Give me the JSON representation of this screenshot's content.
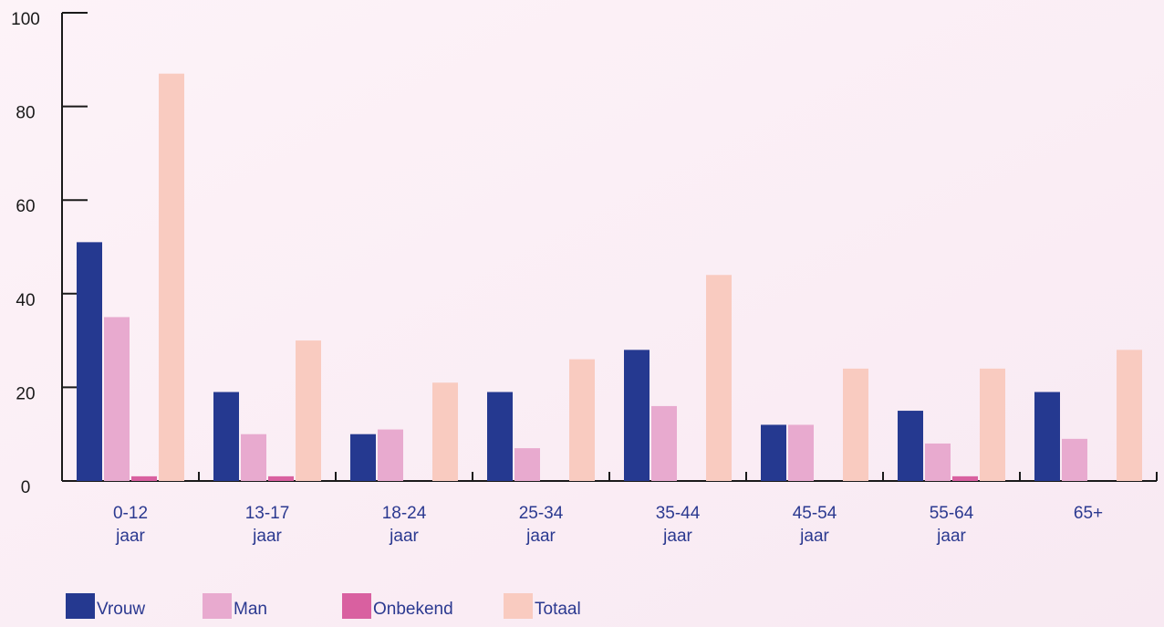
{
  "chart_data": {
    "type": "bar",
    "categories": [
      "0-12 jaar",
      "13-17 jaar",
      "18-24 jaar",
      "25-34 jaar",
      "35-44 jaar",
      "45-54 jaar",
      "55-64 jaar",
      "65+"
    ],
    "series": [
      {
        "name": "Vrouw",
        "color": "#253990",
        "values": [
          51,
          19,
          10,
          19,
          28,
          12,
          15,
          19
        ]
      },
      {
        "name": "Man",
        "color": "#e8aacf",
        "values": [
          35,
          10,
          11,
          7,
          16,
          12,
          8,
          9
        ]
      },
      {
        "name": "Onbekend",
        "color": "#d960a0",
        "values": [
          1,
          1,
          0,
          0,
          0,
          0,
          1,
          0
        ]
      },
      {
        "name": "Totaal",
        "color": "#f9cbc0",
        "values": [
          87,
          30,
          21,
          26,
          44,
          24,
          24,
          28
        ]
      }
    ],
    "ylim": [
      0,
      100
    ],
    "yticks": [
      0,
      20,
      40,
      60,
      80,
      100
    ],
    "grid": false,
    "legend": "bottom"
  }
}
